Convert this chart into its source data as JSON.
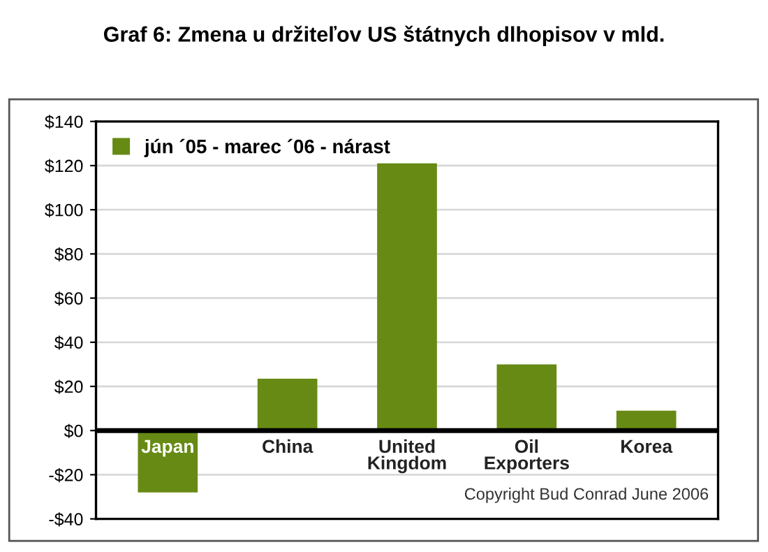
{
  "chart_data": {
    "type": "bar",
    "title": "Graf 6: Zmena u držiteľov US štátnych dlhopisov v mld.",
    "categories": [
      "Japan",
      "China",
      "United\nKingdom",
      "Oil\nExporters",
      "Korea"
    ],
    "series": [
      {
        "name": "jún ´05 - marec ´06 - nárast",
        "color": "#678a14",
        "values": [
          -28,
          23.5,
          121,
          30,
          9
        ]
      }
    ],
    "ylim": [
      -40,
      140
    ],
    "yticks": [
      {
        "value": -40,
        "label": "-$40"
      },
      {
        "value": -20,
        "label": "-$20"
      },
      {
        "value": 0,
        "label": "$0"
      },
      {
        "value": 20,
        "label": "$20"
      },
      {
        "value": 40,
        "label": "$40"
      },
      {
        "value": 60,
        "label": "$60"
      },
      {
        "value": 80,
        "label": "$80"
      },
      {
        "value": 100,
        "label": "$100"
      },
      {
        "value": 120,
        "label": "$120"
      },
      {
        "value": 140,
        "label": "$140"
      }
    ],
    "annotations": [
      "Copyright Bud Conrad June 2006"
    ],
    "grid": "y",
    "legend": "top left",
    "tick_labels": "y"
  }
}
